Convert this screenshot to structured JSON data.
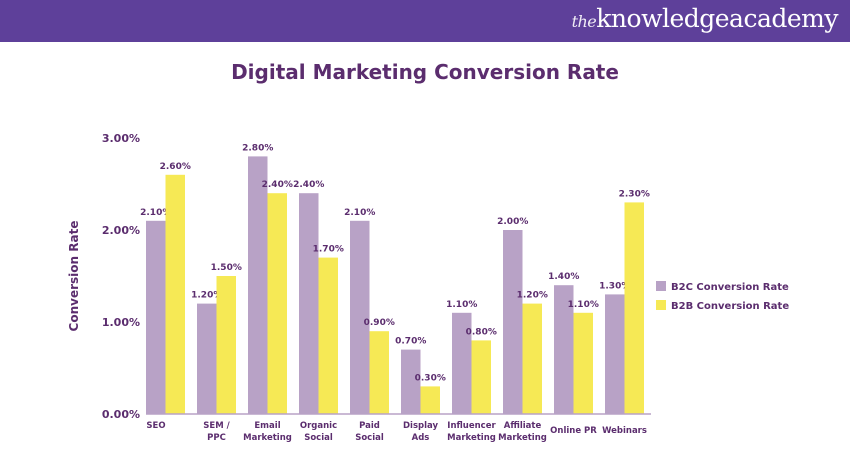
{
  "header": {
    "logo": "theknowledgeacademy",
    "logo_prefix": "the",
    "logo_main": "knowledgeacademy"
  },
  "chart_data": {
    "type": "bar",
    "title": "Digital Marketing Conversion Rate",
    "ylabel": "Conversion Rate",
    "xlabel": "",
    "ylim": [
      0,
      3
    ],
    "yticks": [
      "0.00%",
      "1.00%",
      "2.00%",
      "3.00%"
    ],
    "categories": [
      "SEO",
      "SEM / PPC",
      "Email Marketing",
      "Organic Social",
      "Paid Social",
      "Display Ads",
      "Influencer Marketing",
      "Affiliate Marketing",
      "Online PR",
      "Webinars"
    ],
    "category_lines": [
      [
        "SEO"
      ],
      [
        "SEM /",
        "PPC"
      ],
      [
        "Email",
        "Marketing"
      ],
      [
        "Organic",
        "Social"
      ],
      [
        "Paid",
        "Social"
      ],
      [
        "Display",
        "Ads"
      ],
      [
        "Influencer",
        "Marketing"
      ],
      [
        "Affiliate",
        "Marketing"
      ],
      [
        "Online PR"
      ],
      [
        "Webinars"
      ]
    ],
    "series": [
      {
        "name": "B2C Conversion Rate",
        "color": "#b8a2c6",
        "values": [
          2.1,
          1.2,
          2.8,
          2.4,
          2.1,
          0.7,
          1.1,
          2.0,
          1.4,
          1.3
        ],
        "labels": [
          "2.10%",
          "1.20%",
          "2.80%",
          "2.40%",
          "2.10%",
          "0.70%",
          "1.10%",
          "2.00%",
          "1.40%",
          "1.30%"
        ]
      },
      {
        "name": "B2B Conversion Rate",
        "color": "#f6e955",
        "values": [
          2.6,
          1.5,
          2.4,
          1.7,
          0.9,
          0.3,
          0.8,
          1.2,
          1.1,
          2.3
        ],
        "labels": [
          "2.60%",
          "1.50%",
          "2.40%",
          "1.70%",
          "0.90%",
          "0.30%",
          "0.80%",
          "1.20%",
          "1.10%",
          "2.30%"
        ]
      }
    ],
    "grid": false,
    "legend": "right"
  }
}
